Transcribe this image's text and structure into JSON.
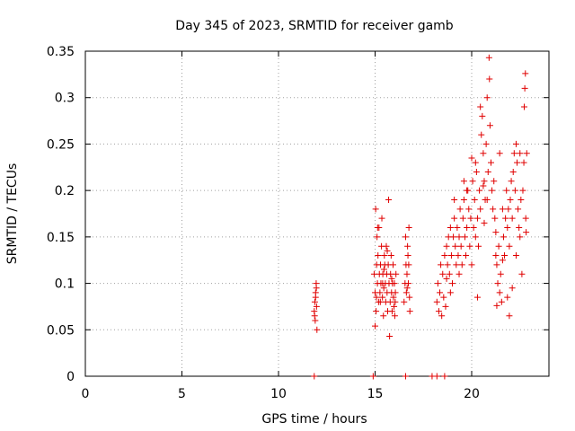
{
  "chart_data": {
    "type": "scatter",
    "title": "Day 345 of 2023, SRMTID for receiver gamb",
    "xlabel": "GPS time / hours",
    "ylabel": "SRMTID / TECUs",
    "xlim": [
      0,
      24
    ],
    "ylim": [
      0,
      0.35
    ],
    "x_ticks": [
      0,
      5,
      10,
      15,
      20
    ],
    "x_tick_labels": [
      "0",
      "5",
      "10",
      "15",
      "20"
    ],
    "y_ticks": [
      0,
      0.05,
      0.1,
      0.15,
      0.2,
      0.25,
      0.3,
      0.35
    ],
    "y_tick_labels": [
      "0",
      "0.05",
      "0.1",
      "0.15",
      "0.2",
      "0.25",
      "0.3",
      "0.35"
    ],
    "grid": true,
    "marker": "plus",
    "color": "#e00000",
    "series": [
      {
        "name": "SRMTID",
        "points": [
          [
            11.85,
            0.07
          ],
          [
            11.88,
            0.08
          ],
          [
            11.9,
            0.06
          ],
          [
            11.92,
            0.09
          ],
          [
            11.95,
            0.1
          ],
          [
            11.97,
            0.075
          ],
          [
            11.99,
            0.05
          ],
          [
            11.92,
            0.085
          ],
          [
            11.87,
            0.065
          ],
          [
            11.96,
            0.095
          ],
          [
            14.95,
            0.11
          ],
          [
            15.0,
            0.09
          ],
          [
            15.05,
            0.07
          ],
          [
            15.08,
            0.12
          ],
          [
            15.1,
            0.15
          ],
          [
            15.12,
            0.1
          ],
          [
            15.15,
            0.13
          ],
          [
            15.18,
            0.08
          ],
          [
            15.2,
            0.16
          ],
          [
            15.22,
            0.11
          ],
          [
            15.25,
            0.09
          ],
          [
            15.28,
            0.12
          ],
          [
            15.3,
            0.1
          ],
          [
            15.33,
            0.14
          ],
          [
            15.35,
            0.17
          ],
          [
            15.38,
            0.085
          ],
          [
            15.4,
            0.11
          ],
          [
            15.43,
            0.065
          ],
          [
            15.45,
            0.095
          ],
          [
            15.48,
            0.13
          ],
          [
            15.5,
            0.12
          ],
          [
            15.53,
            0.1
          ],
          [
            15.55,
            0.08
          ],
          [
            15.58,
            0.14
          ],
          [
            15.6,
            0.11
          ],
          [
            15.62,
            0.09
          ],
          [
            15.65,
            0.07
          ],
          [
            15.68,
            0.12
          ],
          [
            15.7,
            0.19
          ],
          [
            15.72,
            0.1
          ],
          [
            15.75,
            0.043
          ],
          [
            15.78,
            0.08
          ],
          [
            15.8,
            0.11
          ],
          [
            15.83,
            0.13
          ],
          [
            15.85,
            0.09
          ],
          [
            15.88,
            0.07
          ],
          [
            15.9,
            0.1
          ],
          [
            15.93,
            0.12
          ],
          [
            15.95,
            0.085
          ],
          [
            15.98,
            0.075
          ],
          [
            16.0,
            0.1
          ],
          [
            16.02,
            0.065
          ],
          [
            16.05,
            0.09
          ],
          [
            16.08,
            0.11
          ],
          [
            15.0,
            0.054
          ],
          [
            15.03,
            0.18
          ],
          [
            15.07,
            0.085
          ],
          [
            15.13,
            0.16
          ],
          [
            15.27,
            0.08
          ],
          [
            15.46,
            0.115
          ],
          [
            15.63,
            0.135
          ],
          [
            15.86,
            0.105
          ],
          [
            16.04,
            0.08
          ],
          [
            15.39,
            0.1
          ],
          [
            16.5,
            0.08
          ],
          [
            16.55,
            0.1
          ],
          [
            16.6,
            0.12
          ],
          [
            16.62,
            0.09
          ],
          [
            16.65,
            0.11
          ],
          [
            16.68,
            0.14
          ],
          [
            16.7,
            0.13
          ],
          [
            16.72,
            0.1
          ],
          [
            16.75,
            0.16
          ],
          [
            16.78,
            0.085
          ],
          [
            16.8,
            0.07
          ],
          [
            16.58,
            0.15
          ],
          [
            16.66,
            0.095
          ],
          [
            16.74,
            0.12
          ],
          [
            18.2,
            0.08
          ],
          [
            18.25,
            0.1
          ],
          [
            18.3,
            0.07
          ],
          [
            18.35,
            0.09
          ],
          [
            18.4,
            0.12
          ],
          [
            18.45,
            0.065
          ],
          [
            18.5,
            0.11
          ],
          [
            18.55,
            0.085
          ],
          [
            18.6,
            0.13
          ],
          [
            18.65,
            0.075
          ],
          [
            18.7,
            0.14
          ],
          [
            18.75,
            0.12
          ],
          [
            18.8,
            0.15
          ],
          [
            18.85,
            0.11
          ],
          [
            18.9,
            0.16
          ],
          [
            18.95,
            0.13
          ],
          [
            19.0,
            0.1
          ],
          [
            19.05,
            0.15
          ],
          [
            19.1,
            0.17
          ],
          [
            19.15,
            0.14
          ],
          [
            19.2,
            0.12
          ],
          [
            19.25,
            0.16
          ],
          [
            19.3,
            0.13
          ],
          [
            19.35,
            0.15
          ],
          [
            19.4,
            0.18
          ],
          [
            19.45,
            0.14
          ],
          [
            19.5,
            0.12
          ],
          [
            19.55,
            0.17
          ],
          [
            19.6,
            0.19
          ],
          [
            19.65,
            0.15
          ],
          [
            19.7,
            0.13
          ],
          [
            19.75,
            0.16
          ],
          [
            19.8,
            0.2
          ],
          [
            19.85,
            0.18
          ],
          [
            19.9,
            0.14
          ],
          [
            19.95,
            0.17
          ],
          [
            20.0,
            0.12
          ],
          [
            20.05,
            0.21
          ],
          [
            20.1,
            0.16
          ],
          [
            20.15,
            0.19
          ],
          [
            20.2,
            0.15
          ],
          [
            20.25,
            0.22
          ],
          [
            20.3,
            0.17
          ],
          [
            20.35,
            0.14
          ],
          [
            20.4,
            0.2
          ],
          [
            20.45,
            0.18
          ],
          [
            20.5,
            0.26
          ],
          [
            20.55,
            0.28
          ],
          [
            20.6,
            0.24
          ],
          [
            20.65,
            0.21
          ],
          [
            20.7,
            0.19
          ],
          [
            20.75,
            0.25
          ],
          [
            20.8,
            0.3
          ],
          [
            20.85,
            0.22
          ],
          [
            20.9,
            0.343
          ],
          [
            20.92,
            0.32
          ],
          [
            20.95,
            0.27
          ],
          [
            21.0,
            0.23
          ],
          [
            21.05,
            0.2
          ],
          [
            21.1,
            0.18
          ],
          [
            21.15,
            0.21
          ],
          [
            21.2,
            0.17
          ],
          [
            21.25,
            0.13
          ],
          [
            21.3,
            0.12
          ],
          [
            21.35,
            0.1
          ],
          [
            21.4,
            0.14
          ],
          [
            21.45,
            0.09
          ],
          [
            21.5,
            0.11
          ],
          [
            21.55,
            0.08
          ],
          [
            21.6,
            0.125
          ],
          [
            21.65,
            0.15
          ],
          [
            21.7,
            0.13
          ],
          [
            21.75,
            0.17
          ],
          [
            21.8,
            0.2
          ],
          [
            21.85,
            0.16
          ],
          [
            21.9,
            0.18
          ],
          [
            21.95,
            0.14
          ],
          [
            22.0,
            0.19
          ],
          [
            22.05,
            0.21
          ],
          [
            22.1,
            0.17
          ],
          [
            22.15,
            0.22
          ],
          [
            22.2,
            0.24
          ],
          [
            22.25,
            0.2
          ],
          [
            22.3,
            0.25
          ],
          [
            22.35,
            0.23
          ],
          [
            22.4,
            0.18
          ],
          [
            22.45,
            0.16
          ],
          [
            22.5,
            0.24
          ],
          [
            22.55,
            0.19
          ],
          [
            22.6,
            0.11
          ],
          [
            22.65,
            0.2
          ],
          [
            22.7,
            0.23
          ],
          [
            22.72,
            0.29
          ],
          [
            22.75,
            0.31
          ],
          [
            22.78,
            0.326
          ],
          [
            22.8,
            0.17
          ],
          [
            22.82,
            0.155
          ],
          [
            22.85,
            0.24
          ],
          [
            20.3,
            0.085
          ],
          [
            21.3,
            0.076
          ],
          [
            21.85,
            0.085
          ],
          [
            20.6,
            0.205
          ],
          [
            21.45,
            0.24
          ],
          [
            20.0,
            0.235
          ],
          [
            19.6,
            0.21
          ],
          [
            22.3,
            0.13
          ],
          [
            21.6,
            0.18
          ],
          [
            20.8,
            0.19
          ],
          [
            22.5,
            0.15
          ],
          [
            19.1,
            0.19
          ],
          [
            18.9,
            0.09
          ],
          [
            18.7,
            0.105
          ],
          [
            19.35,
            0.11
          ],
          [
            20.2,
            0.23
          ],
          [
            20.45,
            0.29
          ],
          [
            21.95,
            0.065
          ],
          [
            22.1,
            0.095
          ],
          [
            21.25,
            0.155
          ],
          [
            20.65,
            0.165
          ],
          [
            19.75,
            0.2
          ],
          [
            11.85,
            0.0
          ],
          [
            14.9,
            0.0
          ],
          [
            16.58,
            0.0
          ],
          [
            17.95,
            0.0
          ],
          [
            18.2,
            0.0
          ],
          [
            18.6,
            0.0
          ]
        ]
      }
    ]
  }
}
